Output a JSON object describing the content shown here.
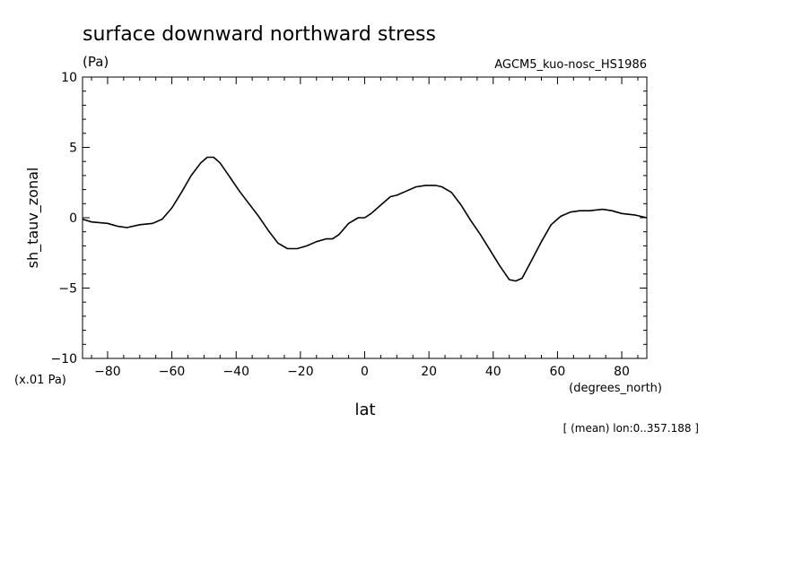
{
  "chart_data": {
    "type": "line",
    "title": "surface downward northward stress",
    "units": "(Pa)",
    "dataset": "AGCM5_kuo-nosc_HS1986",
    "ylabel": "sh_tauv_zonal",
    "yscale_note": "(x.01 Pa)",
    "xlabel": "lat",
    "xunits": "(degrees_north)",
    "footnote": "[ (mean) lon:0..357.188 ]",
    "xlim": [
      -87.8,
      87.8
    ],
    "ylim": [
      -10,
      10
    ],
    "xticks": [
      -80,
      -60,
      -40,
      -20,
      0,
      20,
      40,
      60,
      80
    ],
    "yticks": [
      10,
      5,
      0,
      -5,
      -10
    ],
    "series": [
      {
        "x": [
          -87.8,
          -85,
          -80,
          -77,
          -74,
          -70,
          -66,
          -63,
          -60,
          -57,
          -54,
          -51,
          -49,
          -47,
          -45,
          -42,
          -39,
          -36,
          -33,
          -30,
          -27,
          -24,
          -21,
          -18,
          -15,
          -12,
          -10,
          -8,
          -5,
          -2,
          0,
          2,
          5,
          8,
          10,
          13,
          16,
          19,
          22,
          24,
          27,
          30,
          33,
          36,
          39,
          42,
          45,
          47,
          49,
          52,
          55,
          58,
          61,
          64,
          67,
          70,
          74,
          77,
          80,
          84,
          87.8
        ],
        "y": [
          -0.1,
          -0.3,
          -0.4,
          -0.6,
          -0.7,
          -0.5,
          -0.4,
          -0.1,
          0.7,
          1.8,
          3.0,
          3.9,
          4.3,
          4.3,
          3.9,
          2.9,
          1.9,
          1.0,
          0.1,
          -0.9,
          -1.8,
          -2.2,
          -2.2,
          -2.0,
          -1.7,
          -1.5,
          -1.5,
          -1.2,
          -0.4,
          0.0,
          0.0,
          0.3,
          0.9,
          1.5,
          1.6,
          1.9,
          2.2,
          2.3,
          2.3,
          2.2,
          1.8,
          0.9,
          -0.2,
          -1.2,
          -2.3,
          -3.4,
          -4.4,
          -4.5,
          -4.3,
          -3.0,
          -1.7,
          -0.5,
          0.1,
          0.4,
          0.5,
          0.5,
          0.6,
          0.5,
          0.3,
          0.2,
          0.0
        ]
      }
    ]
  }
}
